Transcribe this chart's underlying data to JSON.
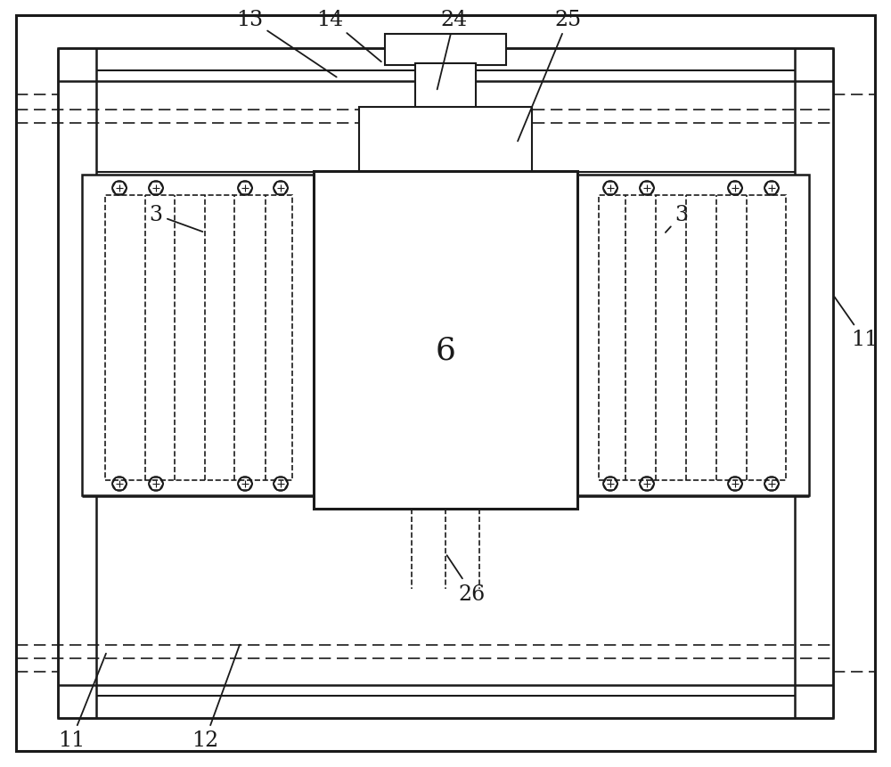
{
  "bg_color": "#ffffff",
  "line_color": "#1a1a1a",
  "fig_width": 10.0,
  "fig_height": 8.62,
  "dpi": 100
}
